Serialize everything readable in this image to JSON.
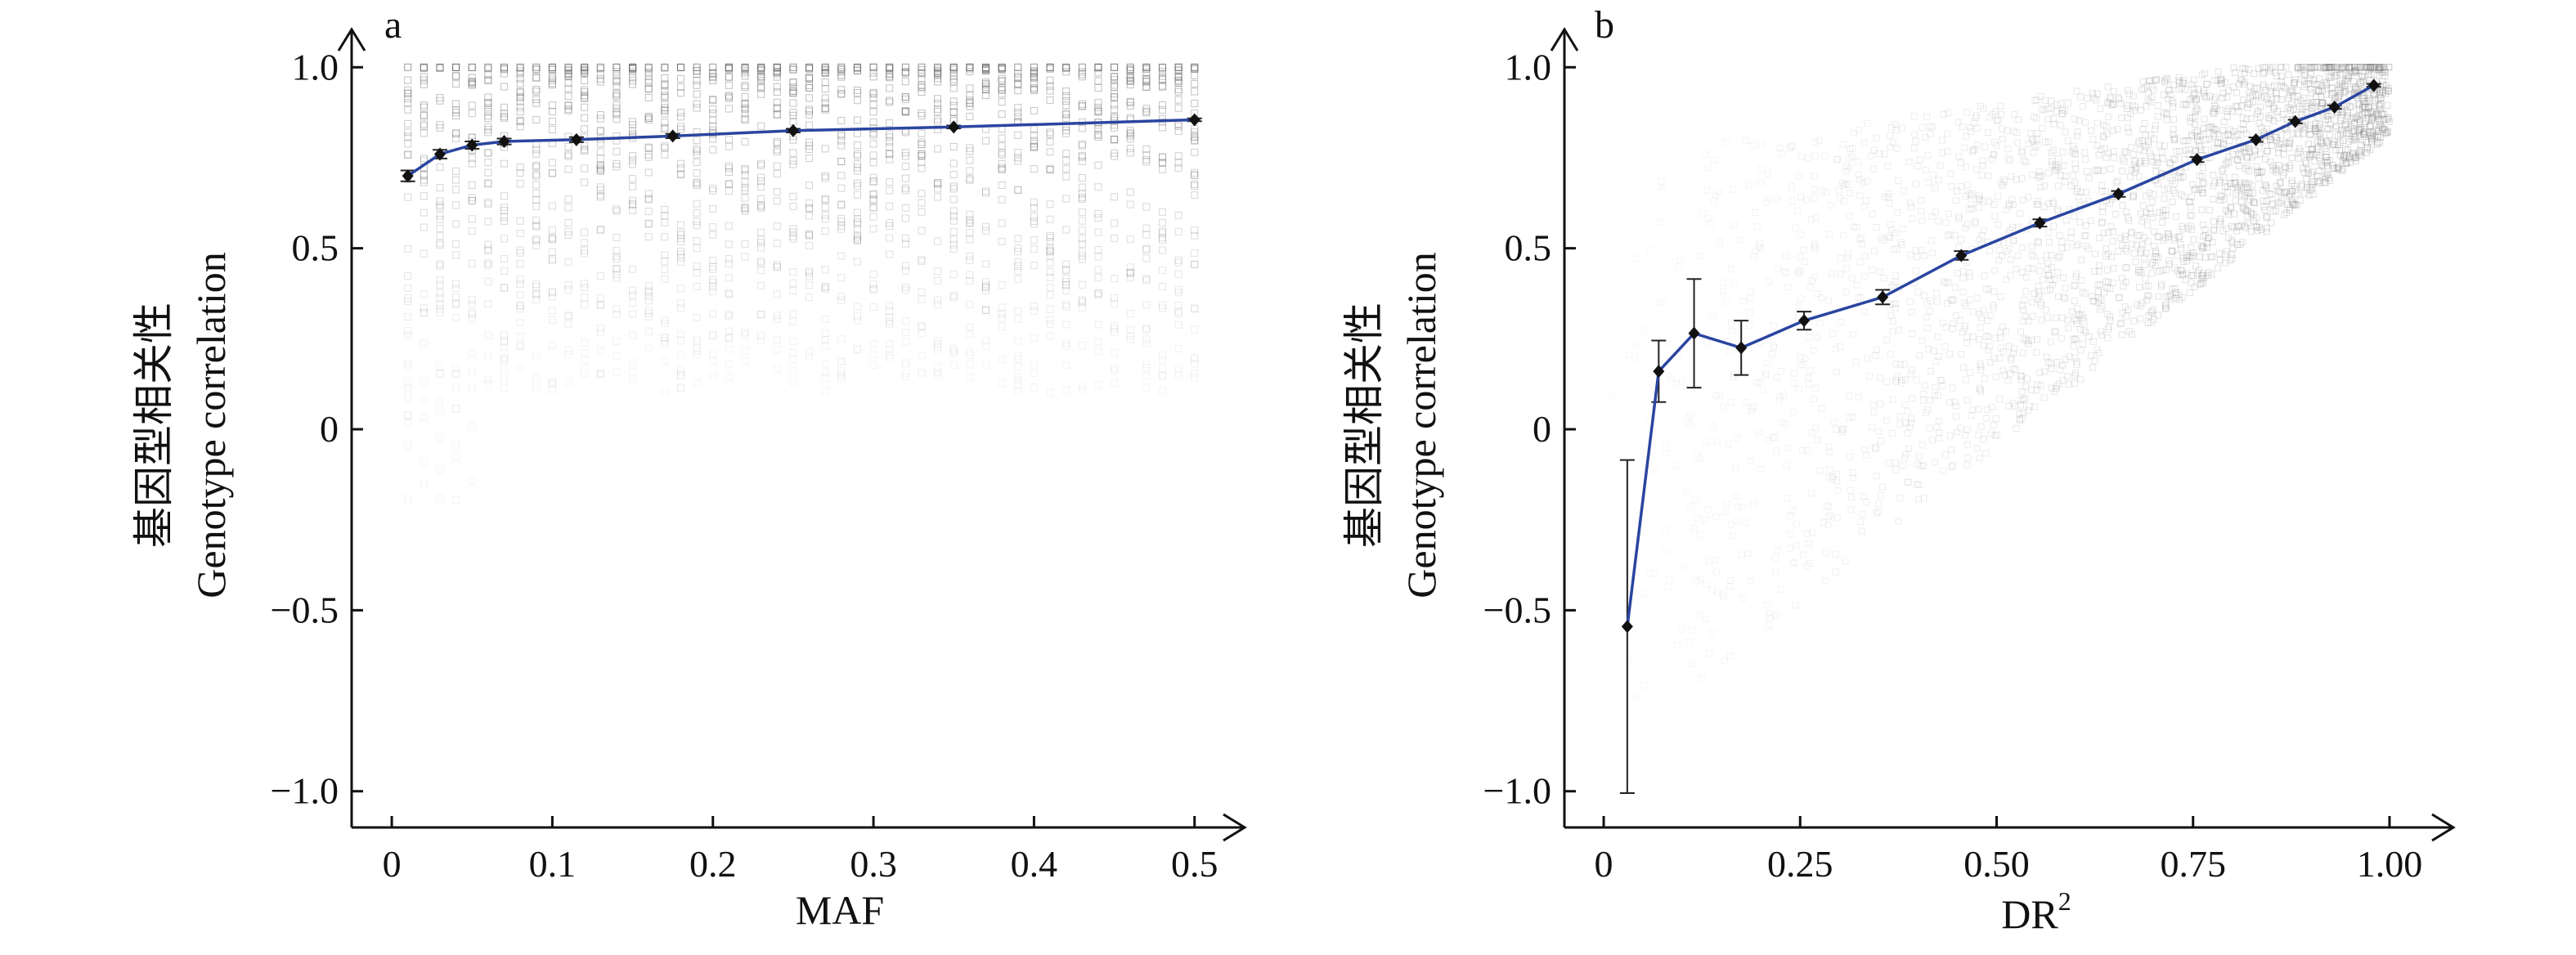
{
  "chart_data": [
    {
      "type": "scatter",
      "panel_label": "a",
      "title": "",
      "xlabel": "MAF",
      "ylabel_cn": "基因型相关性",
      "ylabel_en": "Genotype correlation",
      "xlim": [
        -0.025,
        0.52
      ],
      "ylim": [
        -1.1,
        1.1
      ],
      "xticks": [
        0,
        0.1,
        0.2,
        0.3,
        0.4,
        0.5
      ],
      "xtick_labels": [
        "0",
        "0.1",
        "0.2",
        "0.3",
        "0.4",
        "0.5"
      ],
      "yticks": [
        1.0,
        0.5,
        0,
        -0.5,
        -1.0
      ],
      "ytick_labels": [
        "1.0",
        "0.5",
        "0",
        "−0.5",
        "−1.0"
      ],
      "grid": false,
      "legend": "none",
      "background_markers": "open squares, light gray, dense vertical columns at discrete MAF values",
      "series": [
        {
          "x": [
            0.01,
            0.03,
            0.05,
            0.07,
            0.115,
            0.175,
            0.25,
            0.35,
            0.5
          ],
          "y": [
            0.7,
            0.76,
            0.785,
            0.795,
            0.8,
            0.81,
            0.825,
            0.835,
            0.855
          ],
          "error": [
            0.015,
            0.012,
            0.01,
            0.008,
            0.007,
            0.006,
            0.005,
            0.004,
            0.004
          ],
          "color": "#2a45a0"
        }
      ]
    },
    {
      "type": "scatter",
      "panel_label": "b",
      "title": "",
      "xlabel": "DR",
      "xlabel_superscript": "2",
      "ylabel_cn": "基因型相关性",
      "ylabel_en": "Genotype correlation",
      "xlim": [
        -0.05,
        1.05
      ],
      "ylim": [
        -1.1,
        1.1
      ],
      "xticks": [
        0,
        0.25,
        0.5,
        0.75,
        1.0
      ],
      "xtick_labels": [
        "0",
        "0.25",
        "0.50",
        "0.75",
        "1.00"
      ],
      "yticks": [
        1.0,
        0.5,
        0,
        -0.5,
        -1.0
      ],
      "ytick_labels": [
        "1.0",
        "0.5",
        "0",
        "−0.5",
        "−1.0"
      ],
      "grid": false,
      "legend": "none",
      "background_markers": "open squares, light gray, dense cloud increasing toward high DR2",
      "series": [
        {
          "x": [
            0.03,
            0.07,
            0.115,
            0.175,
            0.255,
            0.355,
            0.455,
            0.555,
            0.655,
            0.755,
            0.83,
            0.88,
            0.93,
            0.98
          ],
          "y": [
            -0.545,
            0.16,
            0.265,
            0.225,
            0.3,
            0.365,
            0.48,
            0.57,
            0.65,
            0.745,
            0.8,
            0.85,
            0.89,
            0.95
          ],
          "error": [
            0.46,
            0.085,
            0.15,
            0.075,
            0.025,
            0.02,
            0.012,
            0.01,
            0.008,
            0.007,
            0.006,
            0.005,
            0.005,
            0.004
          ],
          "color": "#2a45a0"
        }
      ]
    }
  ]
}
